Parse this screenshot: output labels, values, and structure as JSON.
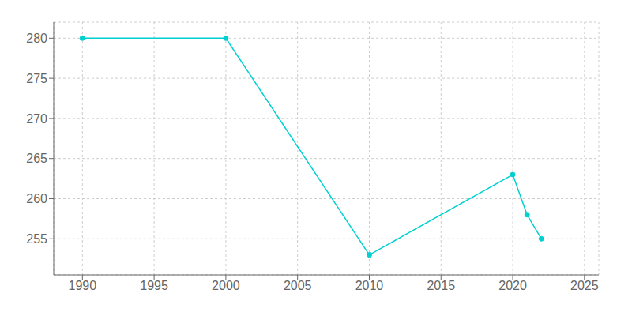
{
  "chart_data": {
    "type": "line",
    "x": [
      1990,
      2000,
      2010,
      2020,
      2021,
      2022
    ],
    "values": [
      280,
      280,
      253,
      263,
      258,
      255
    ],
    "color": "#00D0D0",
    "marker": "circle",
    "xlim": [
      1988,
      2026
    ],
    "ylim": [
      250.5,
      282
    ],
    "xticks": [
      1990,
      1995,
      2000,
      2005,
      2010,
      2015,
      2020,
      2025
    ],
    "yticks": [
      255,
      260,
      265,
      270,
      275,
      280
    ],
    "grid": true
  }
}
